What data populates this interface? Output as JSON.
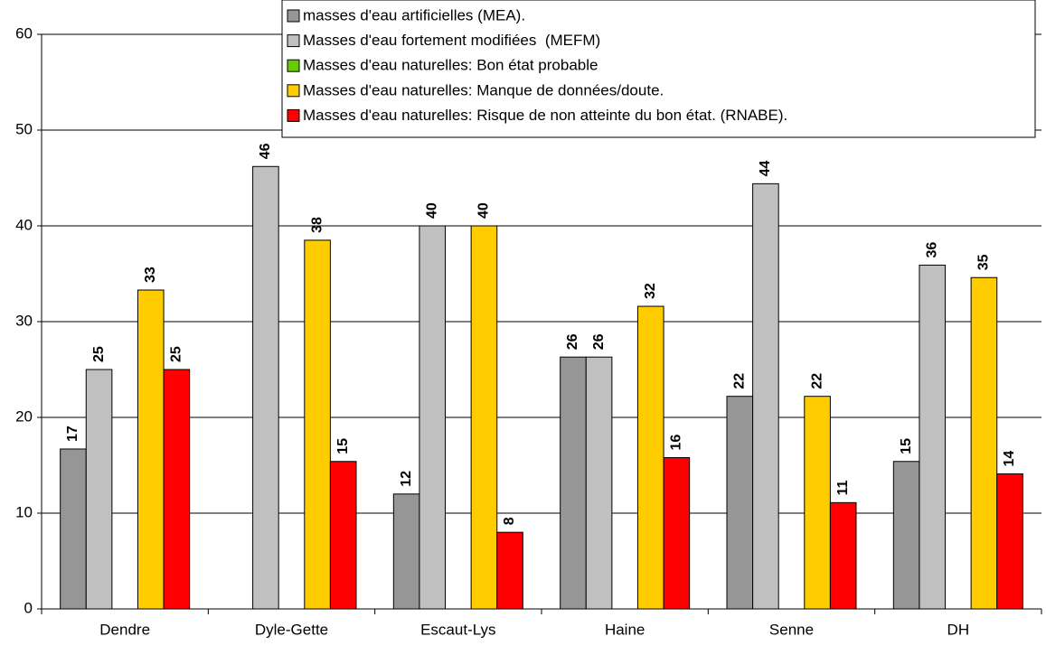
{
  "chart_data": {
    "type": "bar",
    "categories": [
      "Dendre",
      "Dyle-Gette",
      "Escaut-Lys",
      "Haine",
      "Senne",
      "DH"
    ],
    "series": [
      {
        "name": "masses d'eau artificielles (MEA).",
        "color": "#969696",
        "values": [
          16.7,
          null,
          12,
          26.3,
          22.2,
          15.4
        ],
        "value_labels": [
          "17",
          null,
          "12",
          "26",
          "22",
          "15"
        ]
      },
      {
        "name": "Masses d'eau fortement modifiées  (MEFM)",
        "color": "#c0c0c0",
        "values": [
          25,
          46.2,
          40,
          26.3,
          44.4,
          35.9
        ],
        "value_labels": [
          "25",
          "46",
          "40",
          "26",
          "44",
          "36"
        ]
      },
      {
        "name": "Masses d'eau naturelles: Bon état probable",
        "color": "#66cc00",
        "values": [
          null,
          null,
          null,
          null,
          null,
          null
        ]
      },
      {
        "name": "Masses d'eau naturelles: Manque de données/doute.",
        "color": "#ffcc00",
        "values": [
          33.3,
          38.5,
          40,
          31.6,
          22.2,
          34.6
        ],
        "value_labels": [
          "33",
          "38",
          "40",
          "32",
          "22",
          "35"
        ]
      },
      {
        "name": "Masses d'eau naturelles: Risque de non atteinte du bon état. (RNABE).",
        "color": "#ff0000",
        "values": [
          25,
          15.4,
          8,
          15.8,
          11.1,
          14.1
        ],
        "value_labels": [
          "25",
          "15",
          "8",
          "16",
          "11",
          "14"
        ]
      }
    ],
    "ylim": [
      0,
      60
    ],
    "yticks": [
      0,
      10,
      20,
      30,
      40,
      50,
      60
    ],
    "grid": true,
    "legend": "upper right"
  }
}
